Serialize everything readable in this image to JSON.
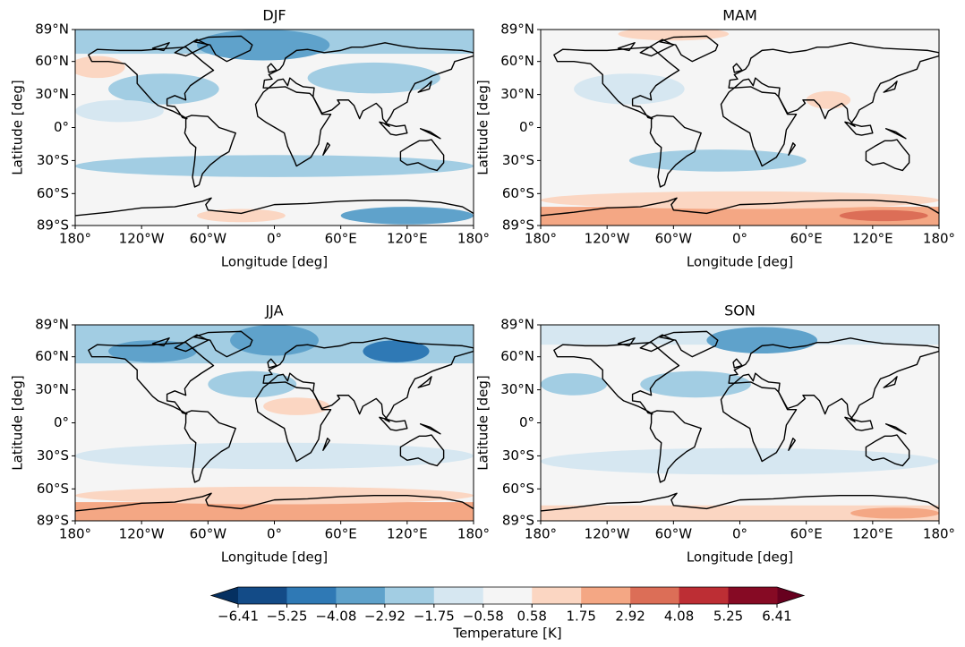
{
  "chart_data": [
    {
      "type": "contour-map",
      "title": "DJF",
      "xlabel": "Longitude [deg]",
      "ylabel": "Latitude [deg]",
      "xlim": [
        -180,
        180
      ],
      "ylim": [
        -89,
        89
      ],
      "xticks": [
        {
          "value": -180,
          "label": "180°"
        },
        {
          "value": -120,
          "label": "120°W"
        },
        {
          "value": -60,
          "label": "60°W"
        },
        {
          "value": 0,
          "label": "0°"
        },
        {
          "value": 60,
          "label": "60°E"
        },
        {
          "value": 120,
          "label": "120°E"
        },
        {
          "value": 180,
          "label": "180°"
        }
      ],
      "yticks": [
        {
          "value": -89,
          "label": "89°S"
        },
        {
          "value": -60,
          "label": "60°S"
        },
        {
          "value": -30,
          "label": "30°S"
        },
        {
          "value": 0,
          "label": "0°"
        },
        {
          "value": 30,
          "label": "30°N"
        },
        {
          "value": 60,
          "label": "60°N"
        },
        {
          "value": 89,
          "label": "89°N"
        }
      ]
    },
    {
      "type": "contour-map",
      "title": "MAM",
      "xlabel": "Longitude [deg]",
      "ylabel": "Latitude [deg]",
      "xlim": [
        -180,
        180
      ],
      "ylim": [
        -89,
        89
      ],
      "xticks": [
        {
          "value": -180,
          "label": "180°"
        },
        {
          "value": -120,
          "label": "120°W"
        },
        {
          "value": -60,
          "label": "60°W"
        },
        {
          "value": 0,
          "label": "0°"
        },
        {
          "value": 60,
          "label": "60°E"
        },
        {
          "value": 120,
          "label": "120°E"
        },
        {
          "value": 180,
          "label": "180°"
        }
      ],
      "yticks": [
        {
          "value": -89,
          "label": "89°S"
        },
        {
          "value": -60,
          "label": "60°S"
        },
        {
          "value": -30,
          "label": "30°S"
        },
        {
          "value": 0,
          "label": "0°"
        },
        {
          "value": 30,
          "label": "30°N"
        },
        {
          "value": 60,
          "label": "60°N"
        },
        {
          "value": 89,
          "label": "89°N"
        }
      ]
    },
    {
      "type": "contour-map",
      "title": "JJA",
      "xlabel": "Longitude [deg]",
      "ylabel": "Latitude [deg]",
      "xlim": [
        -180,
        180
      ],
      "ylim": [
        -89,
        89
      ],
      "xticks": [
        {
          "value": -180,
          "label": "180°"
        },
        {
          "value": -120,
          "label": "120°W"
        },
        {
          "value": -60,
          "label": "60°W"
        },
        {
          "value": 0,
          "label": "0°"
        },
        {
          "value": 60,
          "label": "60°E"
        },
        {
          "value": 120,
          "label": "120°E"
        },
        {
          "value": 180,
          "label": "180°"
        }
      ],
      "yticks": [
        {
          "value": -89,
          "label": "89°S"
        },
        {
          "value": -60,
          "label": "60°S"
        },
        {
          "value": -30,
          "label": "30°S"
        },
        {
          "value": 0,
          "label": "0°"
        },
        {
          "value": 30,
          "label": "30°N"
        },
        {
          "value": 60,
          "label": "60°N"
        },
        {
          "value": 89,
          "label": "89°N"
        }
      ]
    },
    {
      "type": "contour-map",
      "title": "SON",
      "xlabel": "Longitude [deg]",
      "ylabel": "Latitude [deg]",
      "xlim": [
        -180,
        180
      ],
      "ylim": [
        -89,
        89
      ],
      "xticks": [
        {
          "value": -180,
          "label": "180°"
        },
        {
          "value": -120,
          "label": "120°W"
        },
        {
          "value": -60,
          "label": "60°W"
        },
        {
          "value": 0,
          "label": "0°"
        },
        {
          "value": 60,
          "label": "60°E"
        },
        {
          "value": 120,
          "label": "120°E"
        },
        {
          "value": 180,
          "label": "180°"
        }
      ],
      "yticks": [
        {
          "value": -89,
          "label": "89°S"
        },
        {
          "value": -60,
          "label": "60°S"
        },
        {
          "value": -30,
          "label": "30°S"
        },
        {
          "value": 0,
          "label": "0°"
        },
        {
          "value": 30,
          "label": "30°N"
        },
        {
          "value": 60,
          "label": "60°N"
        },
        {
          "value": 89,
          "label": "89°N"
        }
      ]
    }
  ],
  "colorbar": {
    "label": "Temperature [K]",
    "ticks": [
      {
        "value": -6.41,
        "label": "−6.41"
      },
      {
        "value": -5.25,
        "label": "−5.25"
      },
      {
        "value": -4.08,
        "label": "−4.08"
      },
      {
        "value": -2.92,
        "label": "−2.92"
      },
      {
        "value": -1.75,
        "label": "−1.75"
      },
      {
        "value": -0.58,
        "label": "−0.58"
      },
      0.58,
      1.75,
      2.92,
      4.08,
      5.25,
      6.41
    ],
    "colors": [
      "#053061",
      "#134b87",
      "#2f79b5",
      "#5fa2cb",
      "#a2cde3",
      "#d6e7f1",
      "#f5f5f5",
      "#fbd6c2",
      "#f4a784",
      "#dc6e57",
      "#bd2e34",
      "#860a24",
      "#67001f"
    ]
  }
}
